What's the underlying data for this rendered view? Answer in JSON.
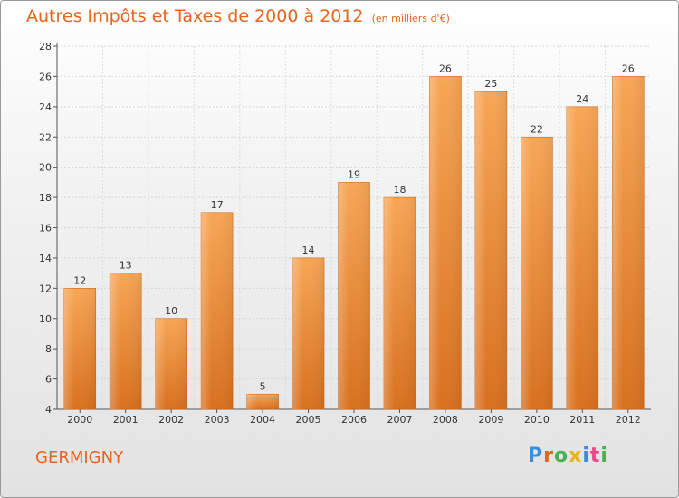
{
  "title": "Autres Impôts et Taxes de 2000 à 2012",
  "unit_note": "(en milliers d'€)",
  "commune": "GERMIGNY",
  "logo": {
    "text": "Proxiti",
    "letter_colors": [
      "#3a8fd6",
      "#e8641d",
      "#4caf50",
      "#e8b21d",
      "#3a8fd6",
      "#e84a8a",
      "#4caf50"
    ]
  },
  "colors": {
    "accent": "#e8641d",
    "bar_top": "#f7a655",
    "bar_bottom": "#d8701f"
  },
  "chart_data": {
    "type": "bar",
    "title": "Autres Impôts et Taxes de 2000 à 2012",
    "subtitle": "(en milliers d'€)",
    "xlabel": "",
    "ylabel": "",
    "categories": [
      "2000",
      "2001",
      "2002",
      "2003",
      "2004",
      "2005",
      "2006",
      "2007",
      "2008",
      "2009",
      "2010",
      "2011",
      "2012"
    ],
    "values": [
      12,
      13,
      10,
      17,
      5,
      14,
      19,
      18,
      26,
      25,
      22,
      24,
      26
    ],
    "ylim": [
      4,
      28
    ],
    "yticks": [
      4,
      6,
      8,
      10,
      12,
      14,
      16,
      18,
      20,
      22,
      24,
      26,
      28
    ],
    "grid": true,
    "legend": "none",
    "data_labels": true
  }
}
